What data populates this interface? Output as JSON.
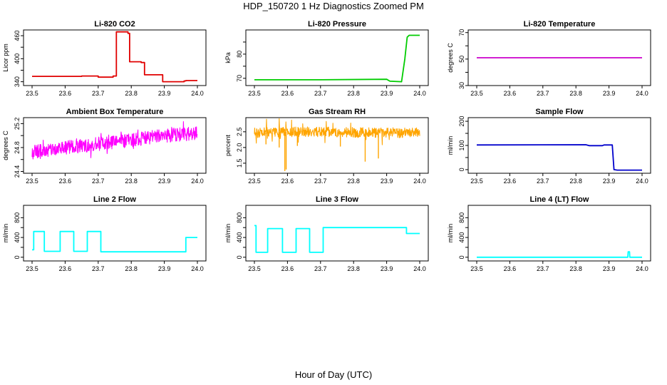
{
  "title": "HDP_150720  1 Hz Diagnostics Zoomed PM",
  "xlabel": "Hour of Day (UTC)",
  "colors": {
    "red": "#e00000",
    "green": "#00cc00",
    "magenta": "#ff00ff",
    "orange": "#ffa500",
    "blue": "#0000cc",
    "cyan": "#00ffff"
  },
  "chart_data": [
    {
      "type": "line",
      "title": "Li-820 CO2",
      "ylabel": "Licor ppm",
      "color": "#e00000",
      "xlim": [
        23.5,
        24.0
      ],
      "ylim": [
        330,
        475
      ],
      "xticks": [
        "23.5",
        "23.6",
        "23.7",
        "23.8",
        "23.9",
        "24.0"
      ],
      "yticks": [
        "340",
        "400",
        "460"
      ],
      "ytick_values": [
        340,
        400,
        460
      ],
      "yminor": [
        370,
        430
      ],
      "series": [
        {
          "style": "step",
          "x": [
            23.5,
            23.65,
            23.68,
            23.7,
            23.745,
            23.755,
            23.76,
            23.79,
            23.795,
            23.83,
            23.84,
            23.895,
            23.96,
            23.965,
            24.0
          ],
          "y": [
            354,
            355,
            355,
            352,
            355,
            470,
            470,
            466,
            392,
            390,
            358,
            340,
            342,
            343,
            343
          ]
        }
      ]
    },
    {
      "type": "line",
      "title": "Li-820 Pressure",
      "ylabel": "kPa",
      "color": "#00cc00",
      "xlim": [
        23.5,
        24.0
      ],
      "ylim": [
        67,
        90
      ],
      "xticks": [
        "23.5",
        "23.6",
        "23.7",
        "23.8",
        "23.9",
        "24.0"
      ],
      "yticks": [
        "70",
        "80"
      ],
      "ytick_values": [
        70,
        80
      ],
      "yminor": [
        75,
        85
      ],
      "series": [
        {
          "style": "line",
          "x": [
            23.5,
            23.7,
            23.9,
            23.91,
            23.945,
            23.955,
            23.962,
            23.968,
            24.0
          ],
          "y": [
            69.4,
            69.4,
            69.6,
            68.8,
            68.6,
            78,
            87,
            87.8,
            87.8
          ]
        }
      ]
    },
    {
      "type": "line",
      "title": "Li-820 Temperature",
      "ylabel": "degrees C",
      "color": "#cc00cc",
      "xlim": [
        23.5,
        24.0
      ],
      "ylim": [
        30,
        72
      ],
      "xticks": [
        "23.5",
        "23.6",
        "23.7",
        "23.8",
        "23.9",
        "24.0"
      ],
      "yticks": [
        "30",
        "50",
        "70"
      ],
      "ytick_values": [
        30,
        50,
        70
      ],
      "yminor": [
        40,
        60
      ],
      "series": [
        {
          "style": "line",
          "x": [
            23.5,
            24.0
          ],
          "y": [
            51,
            51
          ]
        }
      ]
    },
    {
      "type": "line",
      "title": "Ambient Box Temperature",
      "ylabel": "degrees C",
      "color": "#ff00ff",
      "xlim": [
        23.5,
        24.0
      ],
      "ylim": [
        24.37,
        25.3
      ],
      "xticks": [
        "23.5",
        "23.6",
        "23.7",
        "23.8",
        "23.9",
        "24.0"
      ],
      "yticks": [
        "24.4",
        "24.8",
        "25.2"
      ],
      "ytick_values": [
        24.4,
        24.8,
        25.2
      ],
      "yminor": [
        24.6,
        25.0
      ],
      "series": [
        {
          "style": "noisy",
          "x": [
            23.5,
            23.6,
            23.7,
            23.8,
            23.9,
            24.0
          ],
          "y": [
            24.72,
            24.8,
            24.86,
            24.93,
            25.0,
            25.04
          ],
          "spread": 0.23,
          "spike": 0.12
        }
      ]
    },
    {
      "type": "line",
      "title": "Gas Stream RH",
      "ylabel": "percent",
      "color": "#ffa500",
      "xlim": [
        23.5,
        24.0
      ],
      "ylim": [
        1.18,
        2.95
      ],
      "xticks": [
        "23.5",
        "23.6",
        "23.7",
        "23.8",
        "23.9",
        "24.0"
      ],
      "yticks": [
        "1.5",
        "2.0",
        "2.5"
      ],
      "ytick_values": [
        1.5,
        2.0,
        2.5
      ],
      "yminor": [],
      "series": [
        {
          "style": "noisy",
          "x": [
            23.5,
            23.6,
            23.7,
            23.8,
            23.9,
            24.0
          ],
          "y": [
            2.47,
            2.5,
            2.5,
            2.48,
            2.47,
            2.47
          ],
          "spread": 0.32,
          "spike": 0.35,
          "dips": [
            [
              23.592,
              1.25
            ],
            [
              23.596,
              1.3
            ],
            [
              23.575,
              2.0
            ],
            [
              23.63,
              2.05
            ],
            [
              23.76,
              2.03
            ],
            [
              23.835,
              1.55
            ],
            [
              23.875,
              1.65
            ],
            [
              23.535,
              2.1
            ]
          ]
        }
      ]
    },
    {
      "type": "line",
      "title": "Sample Flow",
      "ylabel": "ml/min",
      "color": "#0000cc",
      "xlim": [
        23.5,
        24.0
      ],
      "ylim": [
        -15,
        215
      ],
      "xticks": [
        "23.5",
        "23.6",
        "23.7",
        "23.8",
        "23.9",
        "24.0"
      ],
      "yticks": [
        "0",
        "100",
        "200"
      ],
      "ytick_values": [
        0,
        100,
        200
      ],
      "yminor": [
        50,
        150
      ],
      "series": [
        {
          "style": "line",
          "x": [
            23.5,
            23.83,
            23.84,
            23.88,
            23.885,
            23.91,
            23.915,
            23.925,
            24.0
          ],
          "y": [
            102,
            103,
            99,
            99,
            102,
            102,
            0,
            -2,
            -2
          ]
        }
      ]
    },
    {
      "type": "line",
      "title": "Line 2 Flow",
      "ylabel": "ml/min",
      "color": "#00ffff",
      "xlim": [
        23.5,
        24.0
      ],
      "ylim": [
        -75,
        1050
      ],
      "xticks": [
        "23.5",
        "23.6",
        "23.7",
        "23.8",
        "23.9",
        "24.0"
      ],
      "yticks": [
        "0",
        "400",
        "800"
      ],
      "ytick_values": [
        0,
        400,
        800
      ],
      "yminor": [
        200,
        600
      ],
      "series": [
        {
          "style": "step",
          "x": [
            23.5,
            23.505,
            23.537,
            23.585,
            23.626,
            23.667,
            23.708,
            23.96,
            23.965,
            24.0
          ],
          "y": [
            150,
            520,
            120,
            520,
            120,
            520,
            110,
            110,
            400,
            400
          ]
        }
      ]
    },
    {
      "type": "line",
      "title": "Line 3 Flow",
      "ylabel": "ml/min",
      "color": "#00ffff",
      "xlim": [
        23.5,
        24.0
      ],
      "ylim": [
        -75,
        1050
      ],
      "xticks": [
        "23.5",
        "23.6",
        "23.7",
        "23.8",
        "23.9",
        "24.0"
      ],
      "yticks": [
        "0",
        "400",
        "800"
      ],
      "ytick_values": [
        0,
        400,
        800
      ],
      "yminor": [
        200,
        600
      ],
      "series": [
        {
          "style": "step",
          "x": [
            23.5,
            23.505,
            23.54,
            23.585,
            23.626,
            23.667,
            23.708,
            23.96,
            24.0
          ],
          "y": [
            640,
            100,
            580,
            100,
            580,
            100,
            600,
            480,
            480
          ]
        }
      ]
    },
    {
      "type": "line",
      "title": "Line 4 (LT) Flow",
      "ylabel": "ml/min",
      "color": "#00ffff",
      "xlim": [
        23.5,
        24.0
      ],
      "ylim": [
        -75,
        1050
      ],
      "xticks": [
        "23.5",
        "23.6",
        "23.7",
        "23.8",
        "23.9",
        "24.0"
      ],
      "yticks": [
        "0",
        "400",
        "800"
      ],
      "ytick_values": [
        0,
        400,
        800
      ],
      "yminor": [
        200,
        600
      ],
      "series": [
        {
          "style": "line",
          "x": [
            23.5,
            23.957,
            23.958,
            23.962,
            23.963,
            24.0
          ],
          "y": [
            0,
            0,
            110,
            110,
            0,
            0
          ]
        }
      ]
    }
  ]
}
